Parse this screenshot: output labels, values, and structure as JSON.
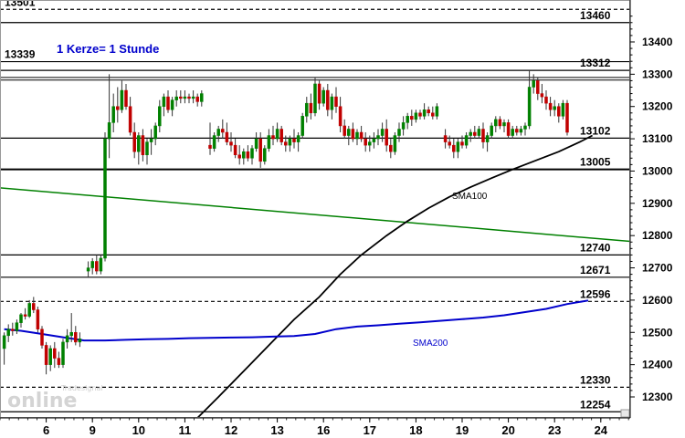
{
  "chart_data": {
    "type": "candlestick",
    "annotation": "1 Kerze= 1 Stunde",
    "watermark": {
      "small": "Tradesignal",
      "big": "online"
    },
    "y_axis": {
      "min": 12235,
      "max": 13530,
      "ticks": [
        12300,
        12400,
        12500,
        12600,
        12700,
        12800,
        12900,
        13000,
        13100,
        13200,
        13300,
        13400
      ],
      "tick_labels": [
        "12300",
        "12400",
        "12500",
        "12600",
        "12700",
        "12800",
        "12900",
        "13000",
        "13100",
        "13200",
        "13300",
        "13400"
      ]
    },
    "x_axis": {
      "min": 0,
      "max": 150,
      "ticks": [
        {
          "label": "6",
          "t": 11
        },
        {
          "label": "9",
          "t": 22
        },
        {
          "label": "10",
          "t": 33
        },
        {
          "label": "11",
          "t": 44
        },
        {
          "label": "12",
          "t": 55
        },
        {
          "label": "13",
          "t": 66
        },
        {
          "label": "16",
          "t": 77
        },
        {
          "label": "17",
          "t": 88
        },
        {
          "label": "18",
          "t": 99
        },
        {
          "label": "19",
          "t": 110
        },
        {
          "label": "20",
          "t": 121
        },
        {
          "label": "23",
          "t": 132
        },
        {
          "label": "24",
          "t": 143
        }
      ]
    },
    "levels": [
      {
        "value": 13501,
        "label": "13501",
        "style": "dashed"
      },
      {
        "value": 13460,
        "label": "13460",
        "style": "solid"
      },
      {
        "value": 13339,
        "label": "13339",
        "style": "solid"
      },
      {
        "value": 13312,
        "label": "13312",
        "style": "solid"
      },
      {
        "value": 13102,
        "label": "13102",
        "style": "solid"
      },
      {
        "value": 13005,
        "label": "13005",
        "style": "solid-bold"
      },
      {
        "value": 12740,
        "label": "12740",
        "style": "solid"
      },
      {
        "value": 12671,
        "label": "12671",
        "style": "solid"
      },
      {
        "value": 12596,
        "label": "12596",
        "style": "dashed"
      },
      {
        "value": 12330,
        "label": "12330",
        "style": "dashed"
      },
      {
        "value": 12254,
        "label": "12254",
        "style": "solid"
      }
    ],
    "resistance_lines": [
      13290,
      13282
    ],
    "trendline": {
      "color": "#008000",
      "from": {
        "t": 0,
        "y": 12948
      },
      "to": {
        "t": 150,
        "y": 12782
      }
    },
    "series": [
      {
        "name": "SMA100",
        "color": "#000000",
        "points": [
          [
            47,
            12235
          ],
          [
            52,
            12300
          ],
          [
            58,
            12380
          ],
          [
            64,
            12460
          ],
          [
            70,
            12540
          ],
          [
            76,
            12610
          ],
          [
            81,
            12680
          ],
          [
            86,
            12740
          ],
          [
            92,
            12800
          ],
          [
            97,
            12845
          ],
          [
            102,
            12885
          ],
          [
            107,
            12920
          ],
          [
            112,
            12950
          ],
          [
            117,
            12978
          ],
          [
            122,
            13005
          ],
          [
            127,
            13030
          ],
          [
            133,
            13060
          ],
          [
            138,
            13090
          ],
          [
            141,
            13110
          ]
        ]
      },
      {
        "name": "SMA200",
        "color": "#0000cc",
        "points": [
          [
            1,
            12510
          ],
          [
            5,
            12505
          ],
          [
            10,
            12495
          ],
          [
            15,
            12485
          ],
          [
            20,
            12475
          ],
          [
            25,
            12475
          ],
          [
            30,
            12477
          ],
          [
            35,
            12479
          ],
          [
            40,
            12480
          ],
          [
            45,
            12482
          ],
          [
            50,
            12483
          ],
          [
            55,
            12484
          ],
          [
            60,
            12485
          ],
          [
            65,
            12487
          ],
          [
            70,
            12489
          ],
          [
            75,
            12495
          ],
          [
            80,
            12510
          ],
          [
            85,
            12518
          ],
          [
            90,
            12522
          ],
          [
            95,
            12527
          ],
          [
            100,
            12531
          ],
          [
            105,
            12536
          ],
          [
            110,
            12541
          ],
          [
            115,
            12546
          ],
          [
            120,
            12553
          ],
          [
            125,
            12563
          ],
          [
            130,
            12573
          ],
          [
            135,
            12588
          ],
          [
            140,
            12599
          ]
        ]
      }
    ],
    "candles": [
      [
        1,
        12450,
        12500,
        12400,
        12490
      ],
      [
        2,
        12490,
        12525,
        12470,
        12510
      ],
      [
        3,
        12510,
        12530,
        12490,
        12505
      ],
      [
        4,
        12505,
        12540,
        12495,
        12530
      ],
      [
        5,
        12530,
        12560,
        12515,
        12555
      ],
      [
        6,
        12555,
        12575,
        12540,
        12550
      ],
      [
        7,
        12550,
        12600,
        12545,
        12590
      ],
      [
        8,
        12590,
        12610,
        12560,
        12570
      ],
      [
        9,
        12570,
        12580,
        12500,
        12510
      ],
      [
        10,
        12510,
        12520,
        12450,
        12460
      ],
      [
        11,
        12460,
        12470,
        12370,
        12400
      ],
      [
        12,
        12400,
        12460,
        12380,
        12450
      ],
      [
        13,
        12450,
        12470,
        12390,
        12420
      ],
      [
        14,
        12420,
        12440,
        12390,
        12400
      ],
      [
        15,
        12400,
        12480,
        12390,
        12470
      ],
      [
        16,
        12470,
        12510,
        12450,
        12490
      ],
      [
        17,
        12490,
        12560,
        12470,
        12500
      ],
      [
        18,
        12500,
        12520,
        12460,
        12470
      ],
      [
        19,
        12470,
        12500,
        12455,
        12480
      ],
      [
        21,
        12690,
        12720,
        12670,
        12700
      ],
      [
        22,
        12700,
        12730,
        12680,
        12720
      ],
      [
        23,
        12720,
        12740,
        12680,
        12690
      ],
      [
        24,
        12690,
        12740,
        12680,
        12730
      ],
      [
        25,
        12730,
        13120,
        12720,
        13100
      ],
      [
        26,
        13100,
        13300,
        13040,
        13150
      ],
      [
        27,
        13150,
        13240,
        13120,
        13200
      ],
      [
        28,
        13200,
        13260,
        13150,
        13190
      ],
      [
        29,
        13190,
        13280,
        13180,
        13250
      ],
      [
        30,
        13250,
        13270,
        13190,
        13200
      ],
      [
        31,
        13200,
        13230,
        13110,
        13120
      ],
      [
        32,
        13120,
        13150,
        13040,
        13060
      ],
      [
        33,
        13060,
        13120,
        13020,
        13110
      ],
      [
        34,
        13110,
        13130,
        13030,
        13050
      ],
      [
        35,
        13050,
        13100,
        13020,
        13090
      ],
      [
        36,
        13090,
        13130,
        13050,
        13100
      ],
      [
        37,
        13100,
        13150,
        13080,
        13140
      ],
      [
        38,
        13140,
        13220,
        13120,
        13200
      ],
      [
        39,
        13200,
        13240,
        13170,
        13230
      ],
      [
        40,
        13230,
        13250,
        13180,
        13190
      ],
      [
        41,
        13190,
        13230,
        13170,
        13220
      ],
      [
        42,
        13220,
        13250,
        13200,
        13230
      ],
      [
        43,
        13230,
        13250,
        13210,
        13225
      ],
      [
        44,
        13225,
        13250,
        13210,
        13230
      ],
      [
        45,
        13230,
        13240,
        13210,
        13225
      ],
      [
        46,
        13225,
        13250,
        13210,
        13230
      ],
      [
        47,
        13230,
        13240,
        13200,
        13215
      ],
      [
        48,
        13215,
        13250,
        13200,
        13240
      ],
      [
        50,
        13080,
        13150,
        13050,
        13070
      ],
      [
        51,
        13070,
        13120,
        13060,
        13110
      ],
      [
        52,
        13110,
        13140,
        13090,
        13130
      ],
      [
        53,
        13130,
        13160,
        13100,
        13120
      ],
      [
        54,
        13120,
        13150,
        13080,
        13090
      ],
      [
        55,
        13090,
        13120,
        13060,
        13080
      ],
      [
        56,
        13080,
        13100,
        13040,
        13050
      ],
      [
        57,
        13050,
        13080,
        13020,
        13040
      ],
      [
        58,
        13040,
        13070,
        13020,
        13060
      ],
      [
        59,
        13060,
        13080,
        13030,
        13040
      ],
      [
        60,
        13040,
        13080,
        13020,
        13070
      ],
      [
        61,
        13070,
        13120,
        13060,
        13100
      ],
      [
        62,
        13100,
        13120,
        13010,
        13030
      ],
      [
        63,
        13030,
        13080,
        13020,
        13070
      ],
      [
        64,
        13070,
        13130,
        13060,
        13110
      ],
      [
        65,
        13110,
        13140,
        13080,
        13100
      ],
      [
        66,
        13100,
        13150,
        13090,
        13130
      ],
      [
        67,
        13130,
        13140,
        13080,
        13090
      ],
      [
        68,
        13090,
        13110,
        13060,
        13080
      ],
      [
        69,
        13080,
        13110,
        13060,
        13100
      ],
      [
        70,
        13100,
        13130,
        13070,
        13090
      ],
      [
        71,
        13090,
        13120,
        13060,
        13110
      ],
      [
        72,
        13110,
        13180,
        13100,
        13170
      ],
      [
        73,
        13170,
        13230,
        13150,
        13210
      ],
      [
        74,
        13210,
        13240,
        13160,
        13180
      ],
      [
        75,
        13180,
        13290,
        13170,
        13270
      ],
      [
        76,
        13270,
        13280,
        13190,
        13210
      ],
      [
        77,
        13210,
        13260,
        13200,
        13250
      ],
      [
        78,
        13250,
        13270,
        13170,
        13190
      ],
      [
        79,
        13190,
        13240,
        13160,
        13230
      ],
      [
        80,
        13230,
        13260,
        13180,
        13200
      ],
      [
        81,
        13200,
        13230,
        13120,
        13140
      ],
      [
        82,
        13140,
        13160,
        13100,
        13110
      ],
      [
        83,
        13110,
        13140,
        13080,
        13130
      ],
      [
        84,
        13130,
        13150,
        13090,
        13100
      ],
      [
        85,
        13100,
        13130,
        13080,
        13120
      ],
      [
        86,
        13120,
        13140,
        13090,
        13100
      ],
      [
        87,
        13100,
        13120,
        13060,
        13080
      ],
      [
        88,
        13080,
        13110,
        13060,
        13090
      ],
      [
        89,
        13090,
        13120,
        13070,
        13100
      ],
      [
        90,
        13100,
        13130,
        13080,
        13110
      ],
      [
        91,
        13110,
        13150,
        13090,
        13130
      ],
      [
        92,
        13130,
        13160,
        13060,
        13080
      ],
      [
        93,
        13080,
        13100,
        13040,
        13060
      ],
      [
        94,
        13060,
        13120,
        13050,
        13110
      ],
      [
        95,
        13110,
        13150,
        13090,
        13130
      ],
      [
        96,
        13130,
        13170,
        13110,
        13150
      ],
      [
        97,
        13150,
        13180,
        13130,
        13170
      ],
      [
        98,
        13170,
        13190,
        13140,
        13160
      ],
      [
        99,
        13160,
        13190,
        13150,
        13180
      ],
      [
        100,
        13180,
        13190,
        13160,
        13170
      ],
      [
        101,
        13170,
        13210,
        13160,
        13190
      ],
      [
        102,
        13190,
        13200,
        13170,
        13180
      ],
      [
        103,
        13180,
        13200,
        13160,
        13170
      ],
      [
        104,
        13170,
        13210,
        13160,
        13200
      ],
      [
        106,
        13110,
        13130,
        13070,
        13090
      ],
      [
        107,
        13090,
        13110,
        13070,
        13080
      ],
      [
        108,
        13080,
        13100,
        13040,
        13060
      ],
      [
        109,
        13060,
        13100,
        13040,
        13090
      ],
      [
        110,
        13090,
        13110,
        13070,
        13080
      ],
      [
        111,
        13080,
        13120,
        13070,
        13110
      ],
      [
        112,
        13110,
        13130,
        13090,
        13120
      ],
      [
        113,
        13120,
        13140,
        13100,
        13110
      ],
      [
        114,
        13110,
        13140,
        13100,
        13130
      ],
      [
        115,
        13130,
        13150,
        13070,
        13090
      ],
      [
        116,
        13090,
        13120,
        13060,
        13110
      ],
      [
        117,
        13110,
        13150,
        13100,
        13140
      ],
      [
        118,
        13140,
        13170,
        13120,
        13160
      ],
      [
        119,
        13160,
        13170,
        13130,
        13140
      ],
      [
        120,
        13140,
        13160,
        13120,
        13150
      ],
      [
        121,
        13150,
        13160,
        13100,
        13110
      ],
      [
        122,
        13110,
        13140,
        13100,
        13130
      ],
      [
        123,
        13130,
        13140,
        13110,
        13120
      ],
      [
        124,
        13120,
        13140,
        13110,
        13130
      ],
      [
        125,
        13130,
        13150,
        13110,
        13140
      ],
      [
        126,
        13140,
        13310,
        13130,
        13260
      ],
      [
        127,
        13260,
        13300,
        13240,
        13280
      ],
      [
        128,
        13280,
        13290,
        13220,
        13240
      ],
      [
        129,
        13240,
        13270,
        13210,
        13230
      ],
      [
        130,
        13230,
        13250,
        13190,
        13210
      ],
      [
        131,
        13210,
        13230,
        13170,
        13190
      ],
      [
        132,
        13190,
        13220,
        13170,
        13200
      ],
      [
        133,
        13200,
        13210,
        13150,
        13170
      ],
      [
        134,
        13170,
        13220,
        13160,
        13210
      ],
      [
        135,
        13210,
        13220,
        13110,
        13120
      ]
    ]
  }
}
